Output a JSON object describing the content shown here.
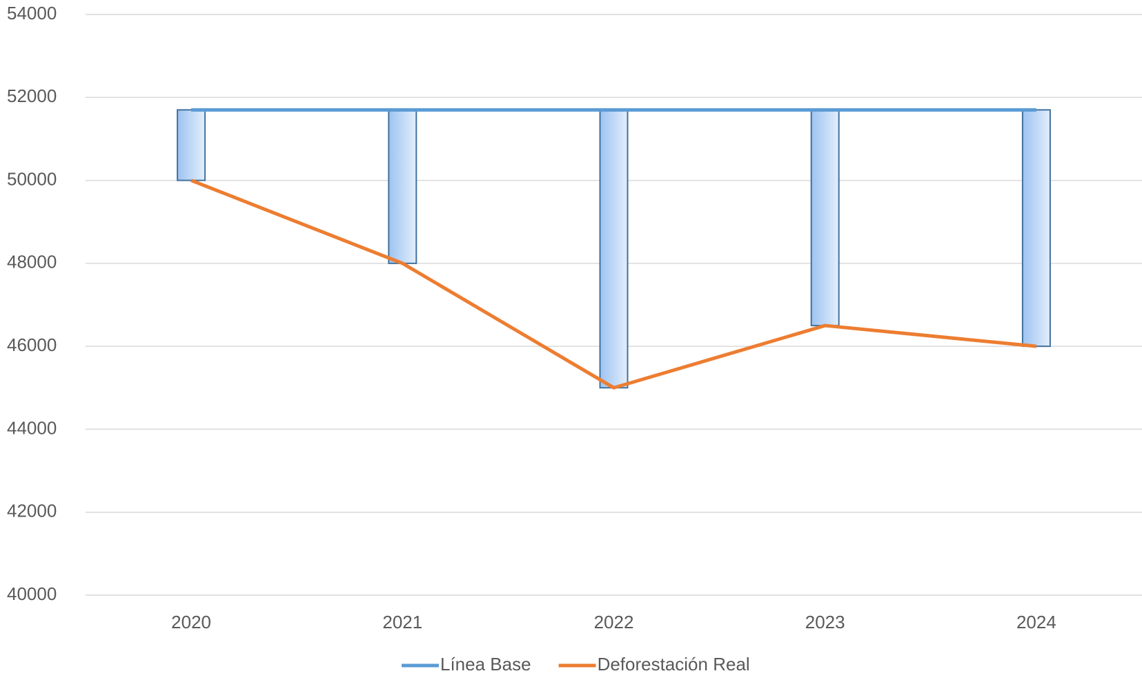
{
  "chart_data": {
    "type": "line",
    "categories": [
      "2020",
      "2021",
      "2022",
      "2023",
      "2024"
    ],
    "series": [
      {
        "name": "Línea Base",
        "color": "#5b9bd5",
        "values": [
          51700,
          51700,
          51700,
          51700,
          51700
        ]
      },
      {
        "name": "Deforestación Real",
        "color": "#ed7d31",
        "values": [
          50000,
          48000,
          45000,
          46500,
          46000
        ]
      }
    ],
    "ylim": [
      40000,
      54000
    ],
    "yticks": [
      40000,
      42000,
      44000,
      46000,
      48000,
      50000,
      52000,
      54000
    ],
    "grid": true,
    "legend": "bottom"
  }
}
